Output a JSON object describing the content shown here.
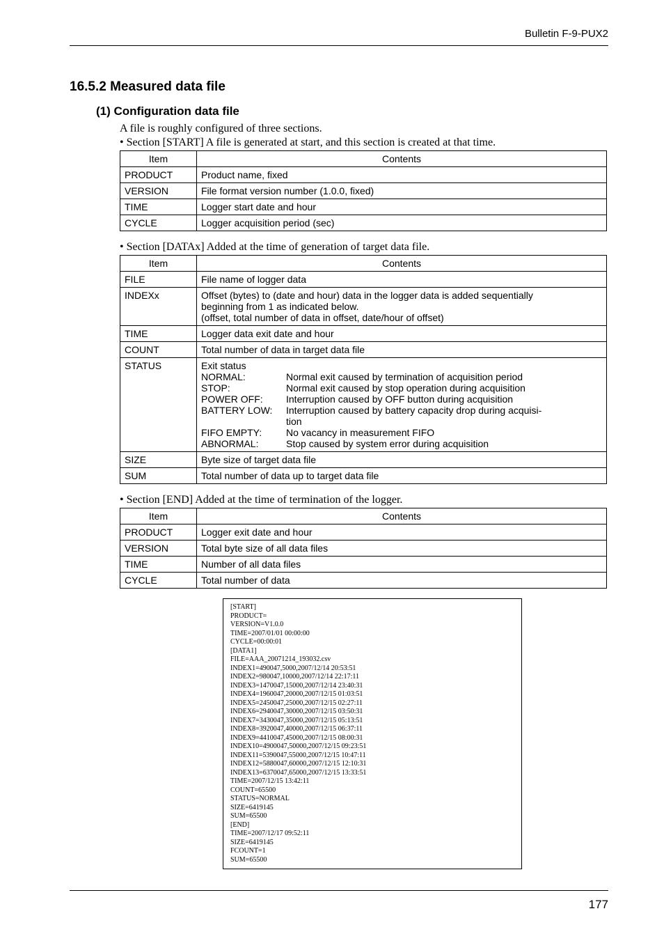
{
  "header": {
    "bulletin": "Bulletin F-9-PUX2"
  },
  "section": {
    "number_title": "16.5.2 Measured data file",
    "sub1_title": "(1) Configuration data file",
    "intro_line": "A file is roughly configured of three sections.",
    "start_bullet": "• Section [START]  A file is generated at start, and this section is created at that time.",
    "datax_bullet": "• Section [DATAx]  Added at the time of generation of target data file.",
    "end_bullet": "• Section [END]  Added at the time of termination of the logger."
  },
  "tableHeaders": {
    "item": "Item",
    "contents": "Contents"
  },
  "startTable": {
    "rows": [
      {
        "item": "PRODUCT",
        "contents": "Product name, fixed"
      },
      {
        "item": "VERSION",
        "contents": "File format version number (1.0.0, fixed)"
      },
      {
        "item": "TIME",
        "contents": "Logger start date and hour"
      },
      {
        "item": "CYCLE",
        "contents": "Logger acquisition period (sec)"
      }
    ]
  },
  "dataxTable": {
    "file": {
      "item": "FILE",
      "contents": "File name of logger data"
    },
    "indexx": {
      "item": "INDEXx",
      "l1": "Offset (bytes) to (date and hour) data in the logger data is added sequentially",
      "l2": "beginning from 1 as indicated below.",
      "l3": "(offset, total number of data in offset, date/hour of offset)"
    },
    "time": {
      "item": "TIME",
      "contents": "Logger data exit date and hour"
    },
    "count": {
      "item": "COUNT",
      "contents": "Total number of data in target data file"
    },
    "status": {
      "item": "STATUS",
      "head": "Exit status",
      "rows": [
        {
          "label": "NORMAL:",
          "desc": "Normal exit caused by termination of acquisition period"
        },
        {
          "label": "STOP:",
          "desc": "Normal exit caused by stop operation during acquisition"
        },
        {
          "label": "POWER OFF:",
          "desc": "Interruption caused by OFF button during acquisition"
        },
        {
          "label": "BATTERY LOW:",
          "desc": "Interruption caused by battery capacity drop during acquisi-"
        },
        {
          "label": "",
          "desc": "tion"
        },
        {
          "label": "FIFO EMPTY:",
          "desc": "No vacancy in measurement FIFO"
        },
        {
          "label": "ABNORMAL:",
          "desc": "Stop caused by system error during acquisition"
        }
      ]
    },
    "size": {
      "item": "SIZE",
      "contents": "Byte size of target data file"
    },
    "sum": {
      "item": "SUM",
      "contents": "Total number of data up to target data file"
    }
  },
  "endTable": {
    "rows": [
      {
        "item": "PRODUCT",
        "contents": "Logger exit date and hour"
      },
      {
        "item": "VERSION",
        "contents": "Total byte size of all data files"
      },
      {
        "item": "TIME",
        "contents": "Number of all data files"
      },
      {
        "item": "CYCLE",
        "contents": "Total number of data"
      }
    ]
  },
  "codebox": "[START]\nPRODUCT=\nVERSION=V1.0.0\nTIME=2007/01/01 00:00:00\nCYCLE=00:00:01\n[DATA1]\nFILE=AAA_20071214_193032.csv\nINDEX1=490047,5000,2007/12/14 20:53:51\nINDEX2=980047,10000,2007/12/14 22:17:11\nINDEX3=1470047,15000,2007/12/14 23:40:31\nINDEX4=1960047,20000,2007/12/15 01:03:51\nINDEX5=2450047,25000,2007/12/15 02:27:11\nINDEX6=2940047,30000,2007/12/15 03:50:31\nINDEX7=3430047,35000,2007/12/15 05:13:51\nINDEX8=3920047,40000,2007/12/15 06:37:11\nINDEX9=4410047,45000,2007/12/15 08:00:31\nINDEX10=4900047,50000,2007/12/15 09:23:51\nINDEX11=5390047,55000,2007/12/15 10:47:11\nINDEX12=5880047,60000,2007/12/15 12:10:31\nINDEX13=6370047,65000,2007/12/15 13:33:51\nTIME=2007/12/15 13:42:11\nCOUNT=65500\nSTATUS=NORMAL\nSIZE=6419145\nSUM=65500\n[END]\nTIME=2007/12/17 09:52:11\nSIZE=6419145\nFCOUNT=1\nSUM=65500",
  "pageNumber": "177"
}
